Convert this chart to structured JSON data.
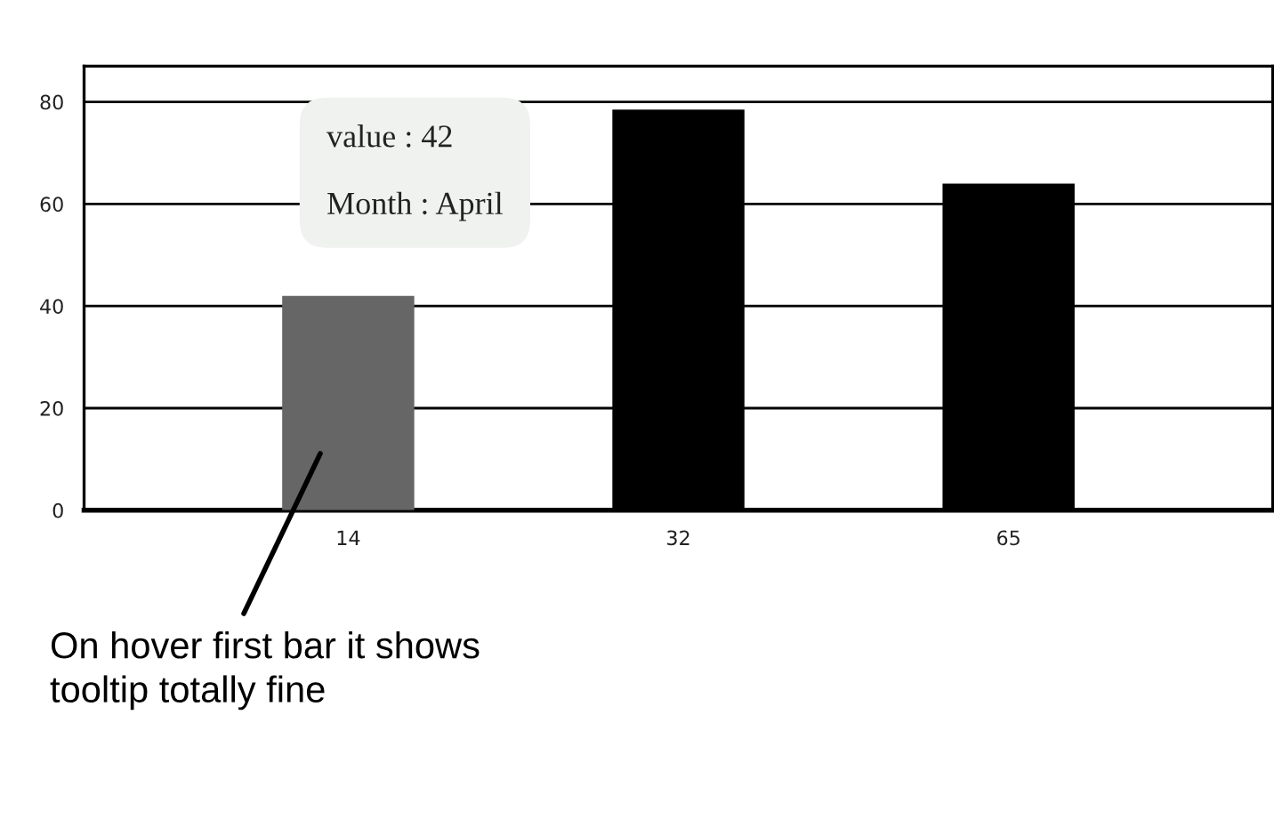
{
  "chart_data": {
    "type": "bar",
    "categories": [
      "14",
      "32",
      "65"
    ],
    "values": [
      42,
      78.5,
      64
    ],
    "colors": [
      "#666666",
      "#000000",
      "#000000"
    ],
    "ylim": [
      0,
      87
    ],
    "yticks": [
      0,
      20,
      40,
      60,
      80
    ],
    "grid": "y",
    "annotations": [
      "value : 42\n\nMonth : April",
      "On hover first bar it shows\ntooltip totally fine"
    ]
  }
}
